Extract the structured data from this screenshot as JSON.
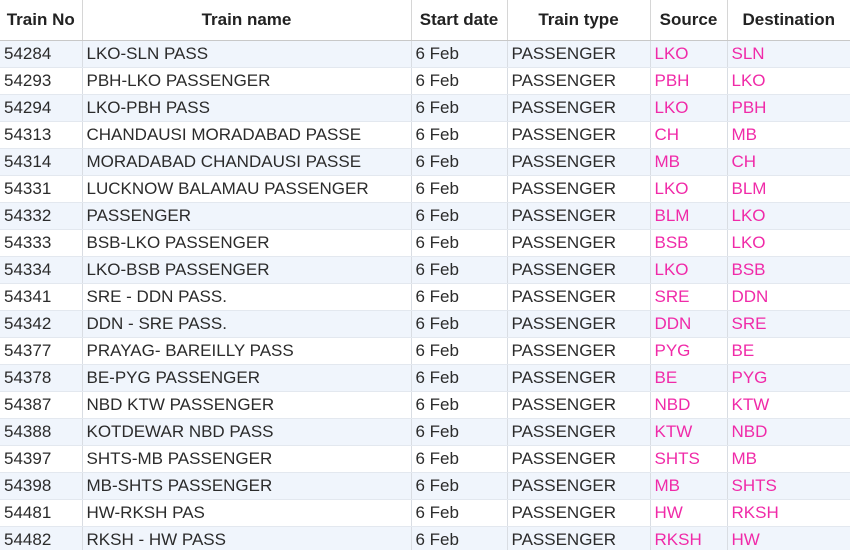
{
  "table": {
    "columns": [
      "Train No",
      "Train name",
      "Start date",
      "Train type",
      "Source",
      "Destination"
    ],
    "header": {
      "train_no": "Train No",
      "train_name": "Train name",
      "start_date": "Start date",
      "train_type": "Train type",
      "source": "Source",
      "destination": "Destination"
    },
    "rows": [
      {
        "no": "54284",
        "name": "LKO-SLN PASS",
        "date": "6 Feb",
        "type": "PASSENGER",
        "src": "LKO",
        "dst": "SLN"
      },
      {
        "no": "54293",
        "name": "PBH-LKO PASSENGER",
        "date": "6 Feb",
        "type": "PASSENGER",
        "src": "PBH",
        "dst": "LKO"
      },
      {
        "no": "54294",
        "name": "LKO-PBH PASS",
        "date": "6 Feb",
        "type": "PASSENGER",
        "src": "LKO",
        "dst": "PBH"
      },
      {
        "no": "54313",
        "name": "CHANDAUSI MORADABAD PASSE",
        "date": "6 Feb",
        "type": "PASSENGER",
        "src": "CH",
        "dst": "MB"
      },
      {
        "no": "54314",
        "name": "MORADABAD CHANDAUSI PASSE",
        "date": "6 Feb",
        "type": "PASSENGER",
        "src": "MB",
        "dst": "CH"
      },
      {
        "no": "54331",
        "name": "LUCKNOW BALAMAU PASSENGER",
        "date": "6 Feb",
        "type": "PASSENGER",
        "src": "LKO",
        "dst": "BLM"
      },
      {
        "no": "54332",
        "name": "PASSENGER",
        "date": "6 Feb",
        "type": "PASSENGER",
        "src": "BLM",
        "dst": "LKO"
      },
      {
        "no": "54333",
        "name": "BSB-LKO PASSENGER",
        "date": "6 Feb",
        "type": "PASSENGER",
        "src": "BSB",
        "dst": "LKO"
      },
      {
        "no": "54334",
        "name": "LKO-BSB PASSENGER",
        "date": "6 Feb",
        "type": "PASSENGER",
        "src": "LKO",
        "dst": "BSB"
      },
      {
        "no": "54341",
        "name": "SRE - DDN PASS.",
        "date": "6 Feb",
        "type": "PASSENGER",
        "src": "SRE",
        "dst": "DDN"
      },
      {
        "no": "54342",
        "name": "DDN - SRE PASS.",
        "date": "6 Feb",
        "type": "PASSENGER",
        "src": "DDN",
        "dst": "SRE"
      },
      {
        "no": "54377",
        "name": "PRAYAG- BAREILLY PASS",
        "date": "6 Feb",
        "type": "PASSENGER",
        "src": "PYG",
        "dst": "BE"
      },
      {
        "no": "54378",
        "name": "BE-PYG PASSENGER",
        "date": "6 Feb",
        "type": "PASSENGER",
        "src": "BE",
        "dst": "PYG"
      },
      {
        "no": "54387",
        "name": "NBD KTW PASSENGER",
        "date": "6 Feb",
        "type": "PASSENGER",
        "src": "NBD",
        "dst": "KTW"
      },
      {
        "no": "54388",
        "name": "KOTDEWAR NBD PASS",
        "date": "6 Feb",
        "type": "PASSENGER",
        "src": "KTW",
        "dst": "NBD"
      },
      {
        "no": "54397",
        "name": "SHTS-MB PASSENGER",
        "date": "6 Feb",
        "type": "PASSENGER",
        "src": "SHTS",
        "dst": "MB"
      },
      {
        "no": "54398",
        "name": "MB-SHTS PASSENGER",
        "date": "6 Feb",
        "type": "PASSENGER",
        "src": "MB",
        "dst": "SHTS"
      },
      {
        "no": "54481",
        "name": "HW-RKSH PAS",
        "date": "6 Feb",
        "type": "PASSENGER",
        "src": "HW",
        "dst": "RKSH"
      },
      {
        "no": "54482",
        "name": "RKSH - HW PASS",
        "date": "6 Feb",
        "type": "PASSENGER",
        "src": "RKSH",
        "dst": "HW"
      }
    ]
  },
  "colors": {
    "station_code": "#f02aa8",
    "row_stripe": "#f0f5fc",
    "text": "#2b2b2b"
  }
}
